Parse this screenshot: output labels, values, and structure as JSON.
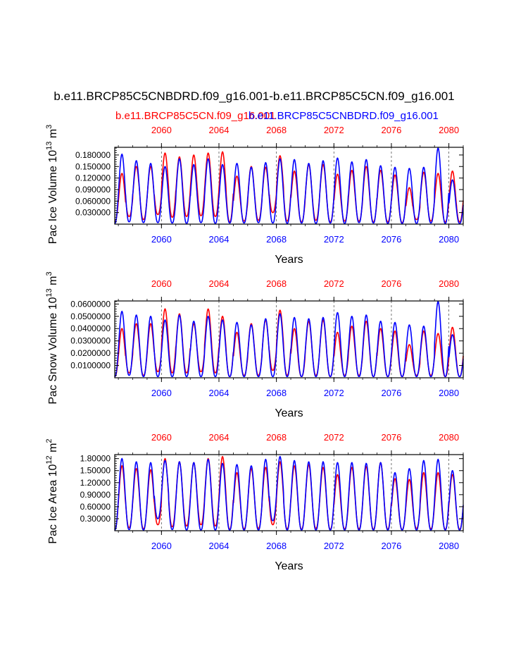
{
  "title": "b.e11.BRCP85C5CNBDRD.f09_g16.001-b.e11.BRCP85C5CN.f09_g16.001",
  "legend": {
    "red_label": "b.e11.BRCP85C5CN.f09_g16.001",
    "blue_label": "b.e11.BRCP85C5CNBDRD.f09_g16.001"
  },
  "colors": {
    "red": "#ff0000",
    "blue": "#0000ff",
    "axis": "#000000"
  },
  "chart_data": [
    {
      "type": "line",
      "name": "ice-volume",
      "ylabel_main": "Pac Ice Volume 10",
      "ylabel_sup": "13",
      "ylabel_unit": " m",
      "ylabel_unit_sup": "3",
      "xlabel": "Years",
      "xlim": [
        2056.75,
        2081.0
      ],
      "ylim": [
        0.0,
        0.2
      ],
      "yticks": [
        0.03,
        0.06,
        0.09,
        0.12,
        0.15,
        0.18
      ],
      "ytick_labels": [
        "0.030000",
        "0.060000",
        "0.090000",
        "0.120000",
        "0.150000",
        "0.180000"
      ],
      "xticks": [
        2060,
        2064,
        2068,
        2072,
        2076,
        2080
      ],
      "xtick_labels": [
        "2060",
        "2064",
        "2068",
        "2072",
        "2076",
        "2080"
      ],
      "series": [
        {
          "name": "red",
          "peaks": [
            0.132,
            0.15,
            0.15,
            0.185,
            0.175,
            0.18,
            0.185,
            0.188,
            0.125,
            0.15,
            0.148,
            0.178,
            0.138,
            0.155,
            0.155,
            0.13,
            0.14,
            0.15,
            0.14,
            0.128,
            0.095,
            0.135,
            0.132,
            0.138
          ],
          "troughs": [
            0.006,
            0.02,
            0.012,
            0.025,
            0.018,
            0.02,
            0.022,
            0.02,
            0.006,
            0.008,
            0.01,
            0.03,
            0.008,
            0.006,
            0.01,
            0.006,
            0.008,
            0.008,
            0.006,
            0.006,
            0.004,
            0.012,
            0.008,
            0.006
          ]
        },
        {
          "name": "blue",
          "peaks": [
            0.182,
            0.165,
            0.158,
            0.15,
            0.17,
            0.155,
            0.17,
            0.155,
            0.158,
            0.148,
            0.16,
            0.17,
            0.168,
            0.158,
            0.165,
            0.172,
            0.162,
            0.168,
            0.152,
            0.148,
            0.145,
            0.148,
            0.198,
            0.115
          ],
          "troughs": [
            0.002,
            0.006,
            0.004,
            0.004,
            0.003,
            0.002,
            0.004,
            0.002,
            0.003,
            0.003,
            0.004,
            0.003,
            0.002,
            0.003,
            0.002,
            0.003,
            0.002,
            0.004,
            0.003,
            0.002,
            0.002,
            0.002,
            0.003,
            0.002
          ]
        }
      ]
    },
    {
      "type": "line",
      "name": "snow-volume",
      "ylabel_main": "Pac Snow Volume 10",
      "ylabel_sup": "13",
      "ylabel_unit": " m",
      "ylabel_unit_sup": "3",
      "xlabel": "Years",
      "xlim": [
        2056.75,
        2081.0
      ],
      "ylim": [
        0.0,
        0.0625
      ],
      "yticks": [
        0.01,
        0.02,
        0.03,
        0.04,
        0.05,
        0.06
      ],
      "ytick_labels": [
        "0.0100000",
        "0.0200000",
        "0.0300000",
        "0.0400000",
        "0.0500000",
        "0.0600000"
      ],
      "xticks": [
        2060,
        2064,
        2068,
        2072,
        2076,
        2080
      ],
      "xtick_labels": [
        "2060",
        "2064",
        "2068",
        "2072",
        "2076",
        "2080"
      ],
      "series": [
        {
          "name": "red",
          "peaks": [
            0.04,
            0.044,
            0.044,
            0.056,
            0.052,
            0.044,
            0.056,
            0.05,
            0.037,
            0.044,
            0.047,
            0.055,
            0.04,
            0.046,
            0.047,
            0.037,
            0.042,
            0.046,
            0.04,
            0.038,
            0.027,
            0.038,
            0.036,
            0.041
          ],
          "troughs": [
            0.001,
            0.004,
            0.002,
            0.005,
            0.004,
            0.004,
            0.005,
            0.004,
            0.001,
            0.002,
            0.002,
            0.006,
            0.002,
            0.001,
            0.002,
            0.001,
            0.002,
            0.002,
            0.001,
            0.001,
            0.001,
            0.002,
            0.002,
            0.001
          ]
        },
        {
          "name": "blue",
          "peaks": [
            0.054,
            0.051,
            0.05,
            0.047,
            0.051,
            0.046,
            0.05,
            0.047,
            0.045,
            0.043,
            0.048,
            0.052,
            0.049,
            0.048,
            0.049,
            0.053,
            0.05,
            0.051,
            0.046,
            0.045,
            0.043,
            0.042,
            0.062,
            0.035
          ],
          "troughs": [
            0.001,
            0.002,
            0.001,
            0.001,
            0.001,
            0.001,
            0.001,
            0.001,
            0.001,
            0.001,
            0.001,
            0.001,
            0.001,
            0.001,
            0.001,
            0.001,
            0.001,
            0.001,
            0.001,
            0.001,
            0.001,
            0.001,
            0.001,
            0.001
          ]
        }
      ]
    },
    {
      "type": "line",
      "name": "ice-area",
      "ylabel_main": "Pac Ice Area 10",
      "ylabel_sup": "12",
      "ylabel_unit": " m",
      "ylabel_unit_sup": "2",
      "xlabel": "Years",
      "xlim": [
        2056.75,
        2081.0
      ],
      "ylim": [
        0.0,
        1.9
      ],
      "yticks": [
        0.3,
        0.6,
        0.9,
        1.2,
        1.5,
        1.8
      ],
      "ytick_labels": [
        "0.30000",
        "0.60000",
        "0.90000",
        "1.20000",
        "1.50000",
        "1.80000"
      ],
      "xticks": [
        2060,
        2064,
        2068,
        2072,
        2076,
        2080
      ],
      "xtick_labels": [
        "2060",
        "2064",
        "2068",
        "2072",
        "2076",
        "2080"
      ],
      "series": [
        {
          "name": "red",
          "peaks": [
            1.62,
            1.55,
            1.52,
            1.8,
            1.72,
            1.7,
            1.8,
            1.85,
            1.45,
            1.55,
            1.58,
            1.72,
            1.62,
            1.65,
            1.58,
            1.4,
            1.58,
            1.6,
            1.7,
            1.3,
            1.28,
            1.45,
            1.45,
            1.4
          ],
          "troughs": [
            0.03,
            0.08,
            0.05,
            0.15,
            0.1,
            0.12,
            0.15,
            0.12,
            0.04,
            0.05,
            0.06,
            0.15,
            0.05,
            0.04,
            0.06,
            0.04,
            0.05,
            0.05,
            0.04,
            0.04,
            0.03,
            0.06,
            0.05,
            0.04
          ]
        },
        {
          "name": "blue",
          "peaks": [
            1.8,
            1.72,
            1.7,
            1.75,
            1.72,
            1.7,
            1.78,
            1.68,
            1.65,
            1.62,
            1.78,
            1.85,
            1.75,
            1.72,
            1.72,
            1.7,
            1.7,
            1.68,
            1.7,
            1.45,
            1.55,
            1.75,
            1.78,
            1.5
          ],
          "troughs": [
            0.02,
            0.03,
            0.02,
            0.3,
            0.03,
            0.02,
            0.02,
            0.02,
            0.02,
            0.02,
            0.02,
            0.25,
            0.02,
            0.02,
            0.02,
            0.02,
            0.02,
            0.02,
            0.02,
            0.02,
            0.02,
            0.02,
            0.02,
            0.02
          ]
        }
      ]
    }
  ]
}
